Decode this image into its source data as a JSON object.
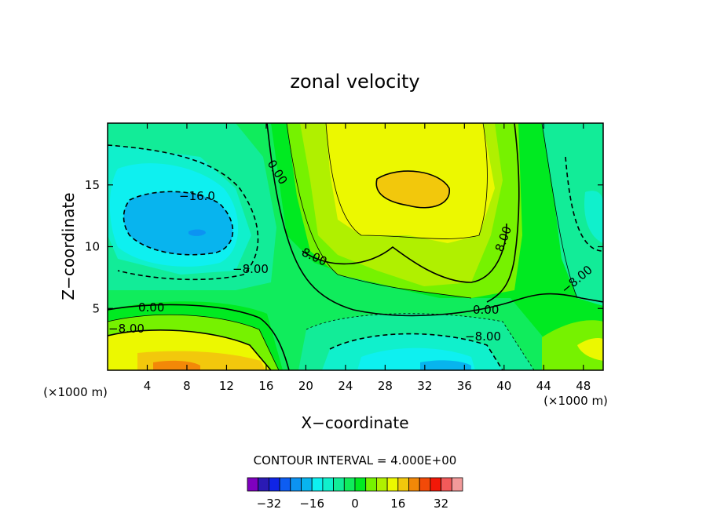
{
  "chart_data": {
    "type": "heatmap",
    "title": "zonal velocity",
    "xlabel": "X−coordinate",
    "ylabel": "Z−coordinate",
    "x_unit": "(×1000 m)",
    "x_unit_right": "(×1000 m)",
    "xlim": [
      0,
      50
    ],
    "ylim": [
      0,
      20
    ],
    "x_ticks": [
      4,
      8,
      12,
      16,
      20,
      24,
      28,
      32,
      36,
      40,
      44,
      48
    ],
    "y_ticks": [
      5,
      10,
      15
    ],
    "contour_interval_text": "CONTOUR INTERVAL = 4.000E+00",
    "contour_interval": 4,
    "contour_labels": [
      "0.00",
      "0.00",
      "0.00",
      "−16.0",
      "−8.00",
      "−8.00",
      "8.00",
      "8.00",
      "−8.00",
      "−8.00"
    ],
    "colorbar": {
      "levels": [
        -36,
        -32,
        -28,
        -24,
        -20,
        -16,
        -12,
        -8,
        -4,
        0,
        4,
        8,
        12,
        16,
        20,
        24,
        28,
        32,
        36
      ],
      "colors": [
        "#7f00bf",
        "#2a1ab4",
        "#0f24e6",
        "#0d5df2",
        "#0c93f2",
        "#08b4ee",
        "#0ef0f0",
        "#10f0cc",
        "#12ec98",
        "#10ec5c",
        "#00ea21",
        "#76f200",
        "#b0f000",
        "#ecf800",
        "#f2c80c",
        "#f28808",
        "#f24a08",
        "#f21808",
        "#f25a5a",
        "#f29a9a"
      ],
      "tick_labels": [
        "−32",
        "−16",
        "0",
        "16",
        "32"
      ],
      "tick_values": [
        -32,
        -16,
        0,
        16,
        32
      ]
    }
  }
}
